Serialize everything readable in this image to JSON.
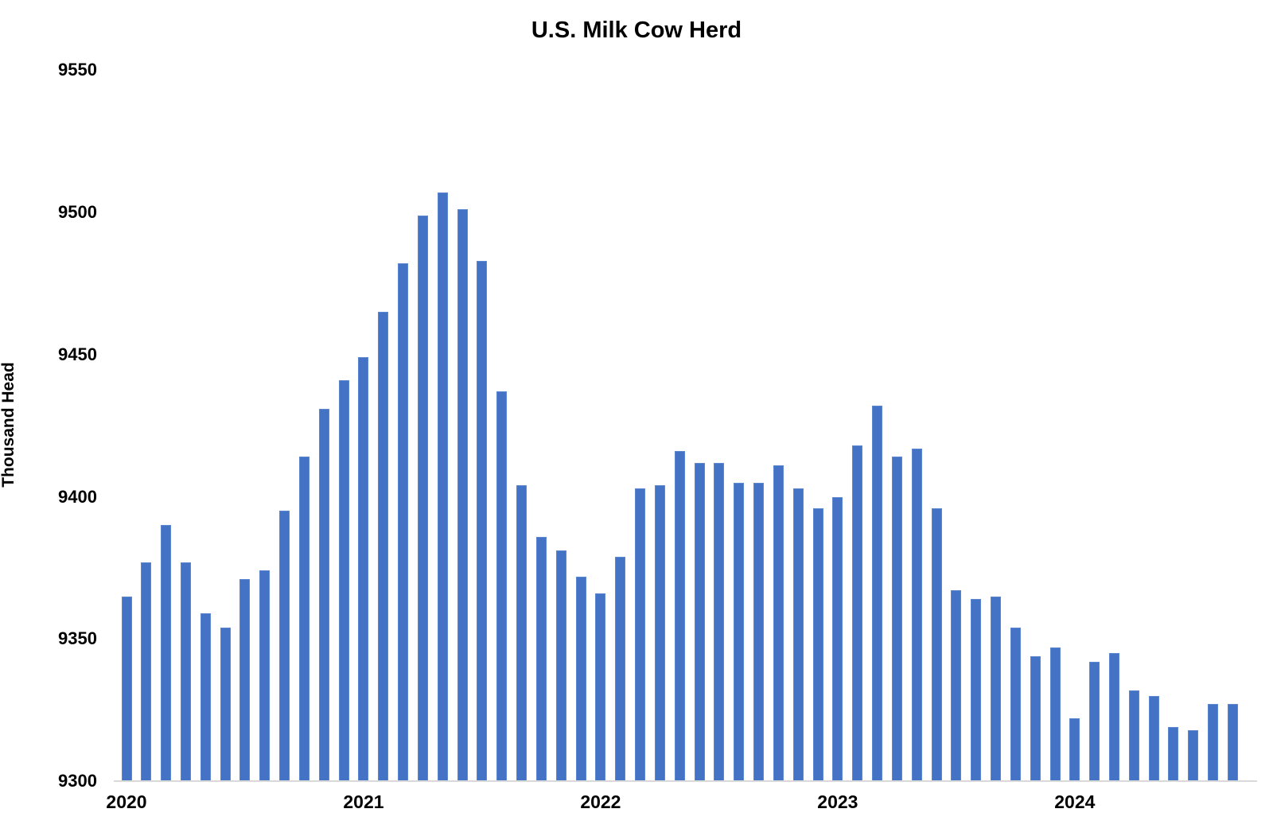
{
  "chart_data": {
    "type": "bar",
    "title": "U.S. Milk Cow Herd",
    "ylabel": "Thousand Head",
    "xlabel": "",
    "bar_color": "#4472C4",
    "axis_line_color": "#D9D9D9",
    "text_color": "#000000",
    "background_color": "#FFFFFF",
    "grid": false,
    "legend": false,
    "ylim": [
      9300,
      9550
    ],
    "yticks": [
      9300,
      9350,
      9400,
      9450,
      9500,
      9550
    ],
    "x_year_ticks": [
      "2020",
      "2021",
      "2022",
      "2023",
      "2024"
    ],
    "months": [
      "2020-01",
      "2020-02",
      "2020-03",
      "2020-04",
      "2020-05",
      "2020-06",
      "2020-07",
      "2020-08",
      "2020-09",
      "2020-10",
      "2020-11",
      "2020-12",
      "2021-01",
      "2021-02",
      "2021-03",
      "2021-04",
      "2021-05",
      "2021-06",
      "2021-07",
      "2021-08",
      "2021-09",
      "2021-10",
      "2021-11",
      "2021-12",
      "2022-01",
      "2022-02",
      "2022-03",
      "2022-04",
      "2022-05",
      "2022-06",
      "2022-07",
      "2022-08",
      "2022-09",
      "2022-10",
      "2022-11",
      "2022-12",
      "2023-01",
      "2023-02",
      "2023-03",
      "2023-04",
      "2023-05",
      "2023-06",
      "2023-07",
      "2023-08",
      "2023-09",
      "2023-10",
      "2023-11",
      "2023-12",
      "2024-01",
      "2024-02",
      "2024-03",
      "2024-04",
      "2024-05",
      "2024-06",
      "2024-07",
      "2024-08",
      "2024-09"
    ],
    "values": [
      9365,
      9377,
      9390,
      9377,
      9359,
      9354,
      9371,
      9374,
      9395,
      9414,
      9431,
      9441,
      9449,
      9465,
      9482,
      9499,
      9507,
      9501,
      9483,
      9437,
      9404,
      9386,
      9381,
      9372,
      9366,
      9379,
      9403,
      9404,
      9416,
      9412,
      9412,
      9405,
      9405,
      9411,
      9403,
      9396,
      9400,
      9418,
      9432,
      9414,
      9417,
      9396,
      9367,
      9364,
      9365,
      9354,
      9344,
      9347,
      9322,
      9342,
      9345,
      9332,
      9330,
      9319,
      9318,
      9327,
      9327
    ]
  }
}
